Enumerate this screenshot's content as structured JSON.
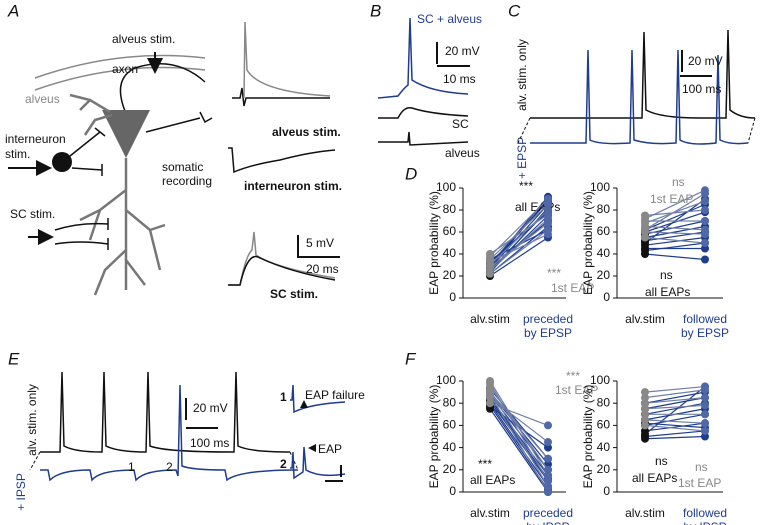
{
  "A": {
    "label": "A",
    "alveus_stim": "alveus stim.",
    "alveus": "alveus",
    "axon": "axon",
    "interneuron_stim": [
      "interneuron",
      "stim."
    ],
    "somatic_recording": [
      "somatic",
      "recording"
    ],
    "sc_stim": "SC stim.",
    "trace_labels": [
      "alveus stim.",
      "interneuron stim.",
      "SC stim."
    ],
    "scale_y": "5 mV",
    "scale_x": "20 ms"
  },
  "B": {
    "label": "B",
    "blue_trace": "SC + alveus",
    "scale_y": "20 mV",
    "scale_x": "10 ms",
    "traces": [
      "SC",
      "alveus"
    ]
  },
  "C": {
    "label": "C",
    "black_trace": "alv. stim. only",
    "blue_trace": "+ EPSP",
    "scale_y": "20 mV",
    "scale_x": "100 ms"
  },
  "D": {
    "label": "D",
    "charts": [
      {
        "type": "slope",
        "y_label": "EAP probability (%)",
        "ylim": [
          0,
          100
        ],
        "yticks": [
          0,
          20,
          40,
          60,
          80,
          100
        ],
        "categories": [
          "alv.stim",
          [
            "preceded",
            "by EPSP"
          ]
        ],
        "category_colors": [
          "#111111",
          "#1f3d8f"
        ],
        "series": [
          {
            "name": "all EAPs",
            "test": "***",
            "colors": [
              "#111111",
              "#1f3d8f"
            ],
            "line_color": "#1f3d8f",
            "text_color": "#111111",
            "before": [
              20,
              22,
              24,
              25,
              27,
              28,
              30,
              31,
              33,
              35,
              26,
              23
            ],
            "after": [
              55,
              65,
              75,
              80,
              85,
              90,
              92,
              88,
              78,
              62,
              70,
              82
            ]
          },
          {
            "name": "1st EAP",
            "test": "***",
            "colors": [
              "#888888",
              "#4f68a8"
            ],
            "line_color": "#6f7fa8",
            "text_color": "#888888",
            "before": [
              22,
              25,
              30,
              35,
              40,
              38,
              28,
              33
            ],
            "after": [
              62,
              72,
              80,
              85,
              76,
              90,
              68,
              58
            ]
          }
        ]
      },
      {
        "type": "slope",
        "y_label": "EAP probability (%)",
        "ylim": [
          0,
          100
        ],
        "yticks": [
          0,
          20,
          40,
          60,
          80,
          100
        ],
        "categories": [
          "alv.stim",
          [
            "followed",
            "by EPSP"
          ]
        ],
        "category_colors": [
          "#111111",
          "#1f3d8f"
        ],
        "series": [
          {
            "name": "all EAPs",
            "test": "ns",
            "colors": [
              "#111111",
              "#1f3d8f"
            ],
            "line_color": "#1f3d8f",
            "text_color": "#111111",
            "before": [
              40,
              45,
              48,
              52,
              55,
              58,
              60,
              62,
              50,
              43
            ],
            "after": [
              35,
              45,
              55,
              60,
              65,
              70,
              78,
              85,
              90,
              50
            ]
          },
          {
            "name": "1st EAP",
            "test": "ns",
            "colors": [
              "#888888",
              "#4f68a8"
            ],
            "line_color": "#6f7fa8",
            "text_color": "#888888",
            "before": [
              55,
              60,
              65,
              70,
              75,
              68,
              62,
              72
            ],
            "after": [
              50,
              58,
              62,
              70,
              80,
              88,
              95,
              98
            ]
          }
        ]
      }
    ]
  },
  "E": {
    "label": "E",
    "black_trace": "alv. stim. only",
    "blue_trace": "+ IPSP",
    "scale_y": "20 mV",
    "scale_x": "100 ms",
    "trace_markers": [
      "1",
      "2"
    ],
    "insets": [
      {
        "number": "1",
        "label": "EAP failure"
      },
      {
        "number": "2",
        "label": "EAP"
      }
    ]
  },
  "F": {
    "label": "F",
    "charts": [
      {
        "type": "slope",
        "y_label": "EAP probability (%)",
        "ylim": [
          0,
          100
        ],
        "yticks": [
          0,
          20,
          40,
          60,
          80,
          100
        ],
        "categories": [
          "alv.stim",
          [
            "preceded",
            "by IPSP"
          ]
        ],
        "category_colors": [
          "#111111",
          "#1f3d8f"
        ],
        "series": [
          {
            "name": "all EAPs",
            "test": "***",
            "colors": [
              "#111111",
              "#1f3d8f"
            ],
            "line_color": "#1f3d8f",
            "text_color": "#111111",
            "before": [
              75,
              78,
              80,
              82,
              85,
              88,
              90,
              93,
              77,
              84
            ],
            "after": [
              0,
              2,
              5,
              10,
              15,
              20,
              25,
              30,
              40,
              12
            ]
          },
          {
            "name": "1st EAP",
            "test": "***",
            "colors": [
              "#888888",
              "#4f68a8"
            ],
            "line_color": "#6f7fa8",
            "text_color": "#888888",
            "before": [
              80,
              85,
              90,
              95,
              100,
              98,
              92,
              88
            ],
            "after": [
              60,
              45,
              30,
              20,
              15,
              10,
              5,
              0
            ]
          }
        ]
      },
      {
        "type": "slope",
        "y_label": "EAP probability (%)",
        "ylim": [
          0,
          100
        ],
        "yticks": [
          0,
          20,
          40,
          60,
          80,
          100
        ],
        "categories": [
          "alv.stim",
          [
            "followed",
            "by IPSP"
          ]
        ],
        "category_colors": [
          "#111111",
          "#1f3d8f"
        ],
        "series": [
          {
            "name": "all EAPs",
            "test": "ns",
            "colors": [
              "#111111",
              "#1f3d8f"
            ],
            "line_color": "#1f3d8f",
            "text_color": "#111111",
            "before": [
              48,
              50,
              55,
              60,
              65,
              70,
              75,
              80,
              52,
              62
            ],
            "after": [
              50,
              55,
              62,
              70,
              75,
              80,
              85,
              90,
              95,
              58
            ]
          },
          {
            "name": "1st EAP",
            "test": "ns",
            "colors": [
              "#888888",
              "#4f68a8"
            ],
            "line_color": "#6f7fa8",
            "text_color": "#888888",
            "before": [
              60,
              65,
              70,
              75,
              80,
              85,
              90
            ],
            "after": [
              55,
              62,
              70,
              78,
              85,
              92,
              95
            ]
          }
        ]
      }
    ]
  }
}
